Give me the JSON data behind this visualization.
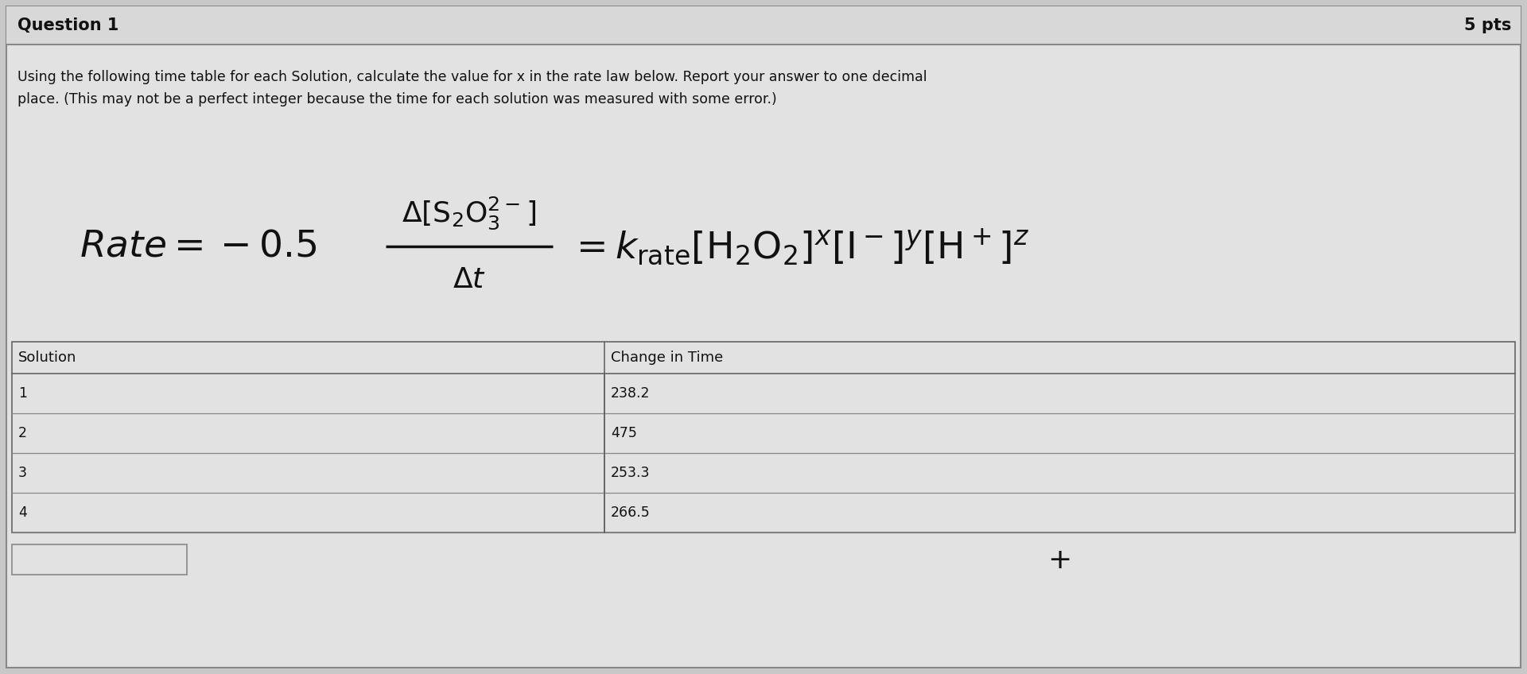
{
  "title_left": "Question 1",
  "title_right": "5 pts",
  "desc_line1": "Using the following time table for each Solution, calculate the value for x in the rate law below. Report your answer to one decimal",
  "desc_line2": "place. (This may not be a perfect integer because the time for each solution was measured with some error.)",
  "table_headers": [
    "Solution",
    "Change in Time"
  ],
  "table_rows": [
    [
      "1",
      "238.2"
    ],
    [
      "2",
      "475"
    ],
    [
      "3",
      "253.3"
    ],
    [
      "4",
      "266.5"
    ]
  ],
  "bg_color": "#c8c8c8",
  "panel_color": "#e2e2e2",
  "border_color": "#888888",
  "title_bar_color": "#d8d8d8",
  "text_color": "#111111",
  "title_fontsize": 15,
  "desc_fontsize": 12.5,
  "eq_fontsize": 34,
  "table_header_fontsize": 13,
  "table_body_fontsize": 12.5,
  "plus_fontsize": 26
}
